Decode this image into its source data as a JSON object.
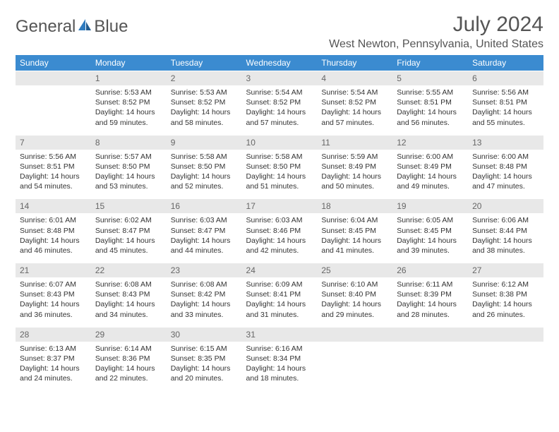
{
  "logo": {
    "part1": "General",
    "part2": "Blue"
  },
  "title": "July 2024",
  "location": "West Newton, Pennsylvania, United States",
  "colors": {
    "header_bg": "#3b8bd0",
    "header_text": "#ffffff",
    "daynum_bg": "#e8e8e8",
    "daynum_text": "#666666",
    "body_text": "#333333",
    "title_text": "#555555",
    "logo_accent": "#2f7bbf"
  },
  "day_headers": [
    "Sunday",
    "Monday",
    "Tuesday",
    "Wednesday",
    "Thursday",
    "Friday",
    "Saturday"
  ],
  "weeks": [
    {
      "nums": [
        "",
        "1",
        "2",
        "3",
        "4",
        "5",
        "6"
      ],
      "cells": [
        null,
        {
          "sunrise": "Sunrise: 5:53 AM",
          "sunset": "Sunset: 8:52 PM",
          "dl1": "Daylight: 14 hours",
          "dl2": "and 59 minutes."
        },
        {
          "sunrise": "Sunrise: 5:53 AM",
          "sunset": "Sunset: 8:52 PM",
          "dl1": "Daylight: 14 hours",
          "dl2": "and 58 minutes."
        },
        {
          "sunrise": "Sunrise: 5:54 AM",
          "sunset": "Sunset: 8:52 PM",
          "dl1": "Daylight: 14 hours",
          "dl2": "and 57 minutes."
        },
        {
          "sunrise": "Sunrise: 5:54 AM",
          "sunset": "Sunset: 8:52 PM",
          "dl1": "Daylight: 14 hours",
          "dl2": "and 57 minutes."
        },
        {
          "sunrise": "Sunrise: 5:55 AM",
          "sunset": "Sunset: 8:51 PM",
          "dl1": "Daylight: 14 hours",
          "dl2": "and 56 minutes."
        },
        {
          "sunrise": "Sunrise: 5:56 AM",
          "sunset": "Sunset: 8:51 PM",
          "dl1": "Daylight: 14 hours",
          "dl2": "and 55 minutes."
        }
      ]
    },
    {
      "nums": [
        "7",
        "8",
        "9",
        "10",
        "11",
        "12",
        "13"
      ],
      "cells": [
        {
          "sunrise": "Sunrise: 5:56 AM",
          "sunset": "Sunset: 8:51 PM",
          "dl1": "Daylight: 14 hours",
          "dl2": "and 54 minutes."
        },
        {
          "sunrise": "Sunrise: 5:57 AM",
          "sunset": "Sunset: 8:50 PM",
          "dl1": "Daylight: 14 hours",
          "dl2": "and 53 minutes."
        },
        {
          "sunrise": "Sunrise: 5:58 AM",
          "sunset": "Sunset: 8:50 PM",
          "dl1": "Daylight: 14 hours",
          "dl2": "and 52 minutes."
        },
        {
          "sunrise": "Sunrise: 5:58 AM",
          "sunset": "Sunset: 8:50 PM",
          "dl1": "Daylight: 14 hours",
          "dl2": "and 51 minutes."
        },
        {
          "sunrise": "Sunrise: 5:59 AM",
          "sunset": "Sunset: 8:49 PM",
          "dl1": "Daylight: 14 hours",
          "dl2": "and 50 minutes."
        },
        {
          "sunrise": "Sunrise: 6:00 AM",
          "sunset": "Sunset: 8:49 PM",
          "dl1": "Daylight: 14 hours",
          "dl2": "and 49 minutes."
        },
        {
          "sunrise": "Sunrise: 6:00 AM",
          "sunset": "Sunset: 8:48 PM",
          "dl1": "Daylight: 14 hours",
          "dl2": "and 47 minutes."
        }
      ]
    },
    {
      "nums": [
        "14",
        "15",
        "16",
        "17",
        "18",
        "19",
        "20"
      ],
      "cells": [
        {
          "sunrise": "Sunrise: 6:01 AM",
          "sunset": "Sunset: 8:48 PM",
          "dl1": "Daylight: 14 hours",
          "dl2": "and 46 minutes."
        },
        {
          "sunrise": "Sunrise: 6:02 AM",
          "sunset": "Sunset: 8:47 PM",
          "dl1": "Daylight: 14 hours",
          "dl2": "and 45 minutes."
        },
        {
          "sunrise": "Sunrise: 6:03 AM",
          "sunset": "Sunset: 8:47 PM",
          "dl1": "Daylight: 14 hours",
          "dl2": "and 44 minutes."
        },
        {
          "sunrise": "Sunrise: 6:03 AM",
          "sunset": "Sunset: 8:46 PM",
          "dl1": "Daylight: 14 hours",
          "dl2": "and 42 minutes."
        },
        {
          "sunrise": "Sunrise: 6:04 AM",
          "sunset": "Sunset: 8:45 PM",
          "dl1": "Daylight: 14 hours",
          "dl2": "and 41 minutes."
        },
        {
          "sunrise": "Sunrise: 6:05 AM",
          "sunset": "Sunset: 8:45 PM",
          "dl1": "Daylight: 14 hours",
          "dl2": "and 39 minutes."
        },
        {
          "sunrise": "Sunrise: 6:06 AM",
          "sunset": "Sunset: 8:44 PM",
          "dl1": "Daylight: 14 hours",
          "dl2": "and 38 minutes."
        }
      ]
    },
    {
      "nums": [
        "21",
        "22",
        "23",
        "24",
        "25",
        "26",
        "27"
      ],
      "cells": [
        {
          "sunrise": "Sunrise: 6:07 AM",
          "sunset": "Sunset: 8:43 PM",
          "dl1": "Daylight: 14 hours",
          "dl2": "and 36 minutes."
        },
        {
          "sunrise": "Sunrise: 6:08 AM",
          "sunset": "Sunset: 8:43 PM",
          "dl1": "Daylight: 14 hours",
          "dl2": "and 34 minutes."
        },
        {
          "sunrise": "Sunrise: 6:08 AM",
          "sunset": "Sunset: 8:42 PM",
          "dl1": "Daylight: 14 hours",
          "dl2": "and 33 minutes."
        },
        {
          "sunrise": "Sunrise: 6:09 AM",
          "sunset": "Sunset: 8:41 PM",
          "dl1": "Daylight: 14 hours",
          "dl2": "and 31 minutes."
        },
        {
          "sunrise": "Sunrise: 6:10 AM",
          "sunset": "Sunset: 8:40 PM",
          "dl1": "Daylight: 14 hours",
          "dl2": "and 29 minutes."
        },
        {
          "sunrise": "Sunrise: 6:11 AM",
          "sunset": "Sunset: 8:39 PM",
          "dl1": "Daylight: 14 hours",
          "dl2": "and 28 minutes."
        },
        {
          "sunrise": "Sunrise: 6:12 AM",
          "sunset": "Sunset: 8:38 PM",
          "dl1": "Daylight: 14 hours",
          "dl2": "and 26 minutes."
        }
      ]
    },
    {
      "nums": [
        "28",
        "29",
        "30",
        "31",
        "",
        "",
        ""
      ],
      "cells": [
        {
          "sunrise": "Sunrise: 6:13 AM",
          "sunset": "Sunset: 8:37 PM",
          "dl1": "Daylight: 14 hours",
          "dl2": "and 24 minutes."
        },
        {
          "sunrise": "Sunrise: 6:14 AM",
          "sunset": "Sunset: 8:36 PM",
          "dl1": "Daylight: 14 hours",
          "dl2": "and 22 minutes."
        },
        {
          "sunrise": "Sunrise: 6:15 AM",
          "sunset": "Sunset: 8:35 PM",
          "dl1": "Daylight: 14 hours",
          "dl2": "and 20 minutes."
        },
        {
          "sunrise": "Sunrise: 6:16 AM",
          "sunset": "Sunset: 8:34 PM",
          "dl1": "Daylight: 14 hours",
          "dl2": "and 18 minutes."
        },
        null,
        null,
        null
      ]
    }
  ]
}
